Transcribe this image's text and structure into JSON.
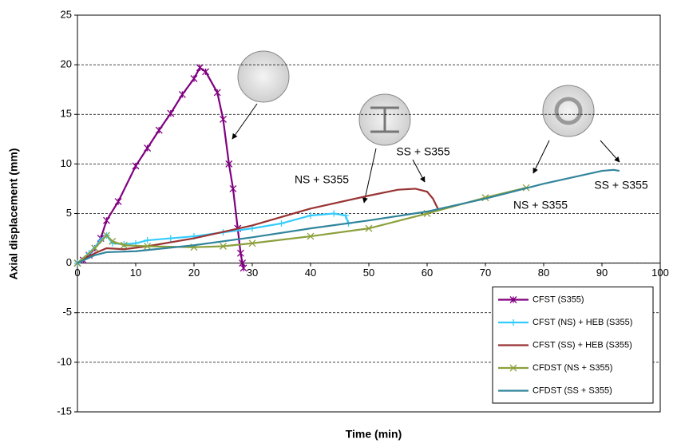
{
  "chart_data": {
    "type": "line",
    "x_label": "Time (min)",
    "y_label": "Axial displacement (mm)",
    "xlim": [
      0,
      100
    ],
    "xticks": [
      0,
      10,
      20,
      30,
      40,
      50,
      60,
      70,
      80,
      90,
      100
    ],
    "ylim": [
      -15,
      25
    ],
    "yticks": [
      -15,
      -10,
      -5,
      0,
      5,
      10,
      15,
      20,
      25
    ],
    "grid": true,
    "legend": "lower right",
    "annotations": [
      "NS + S355",
      "SS + S355",
      "SS + S355",
      "NS + S355"
    ],
    "series": [
      {
        "name": "CFST (S355)",
        "color": "#800080",
        "marker": "star",
        "x": [
          0,
          1,
          2,
          3,
          4,
          5,
          7,
          10,
          12,
          14,
          16,
          18,
          20,
          21,
          22,
          24,
          25,
          26,
          26.7,
          27.5,
          28,
          28.3,
          28.5
        ],
        "values": [
          0,
          0.3,
          0.8,
          1.5,
          2.5,
          4.3,
          6.2,
          9.8,
          11.6,
          13.4,
          15.1,
          17,
          18.6,
          19.7,
          19.3,
          17.2,
          14.5,
          10,
          7.5,
          3.5,
          1,
          0,
          -0.5
        ]
      },
      {
        "name": "CFST (NS) + HEB (S355)",
        "color": "#33ccff",
        "marker": "plus",
        "x": [
          0,
          2,
          4,
          5,
          6,
          8,
          10,
          12,
          16,
          20,
          25,
          30,
          35,
          40,
          44,
          46,
          46.5
        ],
        "values": [
          0,
          1,
          2.3,
          2.8,
          2,
          1.9,
          2,
          2.3,
          2.5,
          2.7,
          3.1,
          3.5,
          4,
          4.8,
          5,
          4.8,
          4
        ]
      },
      {
        "name": "CFST (SS) + HEB (S355)",
        "color": "#993333",
        "marker": null,
        "x": [
          0,
          3,
          5,
          8,
          12,
          20,
          30,
          40,
          50,
          55,
          58,
          60,
          61,
          62
        ],
        "values": [
          0,
          1,
          1.5,
          1.4,
          1.7,
          2.5,
          3.8,
          5.5,
          6.8,
          7.4,
          7.5,
          7.2,
          6.5,
          5.3
        ]
      },
      {
        "name": "CFDST (NS + S355)",
        "color": "#8ca03c",
        "marker": "x",
        "x": [
          0,
          3,
          5,
          6,
          8,
          12,
          20,
          25,
          30,
          40,
          50,
          60,
          70,
          77
        ],
        "values": [
          0,
          1.5,
          2.8,
          2.2,
          1.8,
          1.7,
          1.6,
          1.7,
          2,
          2.7,
          3.5,
          5,
          6.6,
          7.6
        ]
      },
      {
        "name": "CFDST (SS + S355)",
        "color": "#31859c",
        "marker": null,
        "x": [
          0,
          3,
          5,
          10,
          20,
          30,
          40,
          50,
          60,
          70,
          80,
          90,
          92,
          93
        ],
        "values": [
          0,
          0.8,
          1.1,
          1.2,
          1.8,
          2.6,
          3.5,
          4.3,
          5.2,
          6.5,
          8,
          9.3,
          9.4,
          9.3
        ]
      }
    ]
  }
}
